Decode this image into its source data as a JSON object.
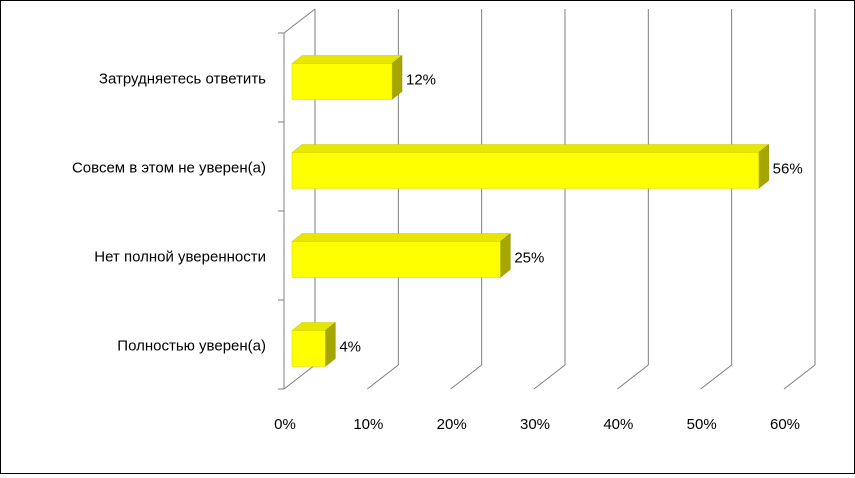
{
  "chart_data": {
    "type": "bar",
    "orientation": "horizontal",
    "style": "3d",
    "categories": [
      "Полностью уверен(а)",
      "Нет полной уверенности",
      "Совсем в этом не уверен(а)",
      "Затрудняетесь ответить"
    ],
    "values": [
      4,
      25,
      56,
      12
    ],
    "data_labels": [
      "4%",
      "25%",
      "56%",
      "12%"
    ],
    "xlim": [
      0,
      60
    ],
    "x_ticks": [
      "0%",
      "10%",
      "20%",
      "30%",
      "40%",
      "50%",
      "60%"
    ],
    "grid": "vertical",
    "legend": "none",
    "colors": {
      "bar_front": "#FFFF00",
      "bar_top": "#E6E600",
      "bar_side": "#A6A600",
      "grid": "#7F7F7F"
    }
  }
}
